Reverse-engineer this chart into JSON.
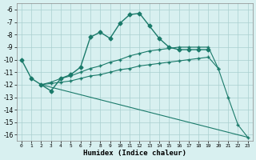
{
  "xlabel": "Humidex (Indice chaleur)",
  "bg_color": "#d8f0f0",
  "grid_color": "#aacfcf",
  "line_color": "#1a7a6a",
  "xlim": [
    -0.5,
    23.5
  ],
  "ylim": [
    -16.5,
    -5.5
  ],
  "yticks": [
    -16,
    -15,
    -14,
    -13,
    -12,
    -11,
    -10,
    -9,
    -8,
    -7,
    -6
  ],
  "xticks": [
    0,
    1,
    2,
    3,
    4,
    5,
    6,
    7,
    8,
    9,
    10,
    11,
    12,
    13,
    14,
    15,
    16,
    17,
    18,
    19,
    20,
    21,
    22,
    23
  ],
  "series": [
    {
      "x": [
        0,
        1,
        2,
        3,
        4,
        5,
        6,
        7,
        8,
        9,
        10,
        11,
        12,
        13,
        14,
        15,
        16,
        17,
        18,
        19
      ],
      "y": [
        -10.0,
        -11.5,
        -12.0,
        -12.5,
        -11.5,
        -11.2,
        -10.6,
        -8.2,
        -7.8,
        -8.3,
        -7.1,
        -6.4,
        -6.3,
        -7.3,
        -8.3,
        -9.0,
        -9.2,
        -9.2,
        -9.2,
        -9.2
      ],
      "marker": "D",
      "markersize": 2.5,
      "linewidth": 1.0
    },
    {
      "x": [
        2,
        3,
        4,
        5,
        6,
        7,
        8,
        9,
        10,
        11,
        12,
        13,
        14,
        15,
        16,
        17,
        18,
        19,
        20
      ],
      "y": [
        -12.0,
        -11.8,
        -11.5,
        -11.3,
        -11.0,
        -10.7,
        -10.5,
        -10.2,
        -10.0,
        -9.7,
        -9.5,
        -9.3,
        -9.2,
        -9.1,
        -9.0,
        -9.0,
        -9.0,
        -9.0,
        -10.7
      ],
      "marker": "+",
      "markersize": 3.5,
      "linewidth": 0.8
    },
    {
      "x": [
        2,
        23
      ],
      "y": [
        -12.0,
        -16.2
      ],
      "marker": null,
      "markersize": 0,
      "linewidth": 0.8
    },
    {
      "x": [
        2,
        3,
        4,
        5,
        6,
        7,
        8,
        9,
        10,
        11,
        12,
        13,
        14,
        15,
        16,
        17,
        18,
        19,
        20,
        21,
        22,
        23
      ],
      "y": [
        -12.0,
        -11.9,
        -11.8,
        -11.7,
        -11.5,
        -11.3,
        -11.2,
        -11.0,
        -10.8,
        -10.7,
        -10.5,
        -10.4,
        -10.3,
        -10.2,
        -10.1,
        -10.0,
        -9.9,
        -9.8,
        -10.7,
        -13.0,
        -15.2,
        -16.2
      ],
      "marker": "+",
      "markersize": 3.5,
      "linewidth": 0.8
    }
  ]
}
